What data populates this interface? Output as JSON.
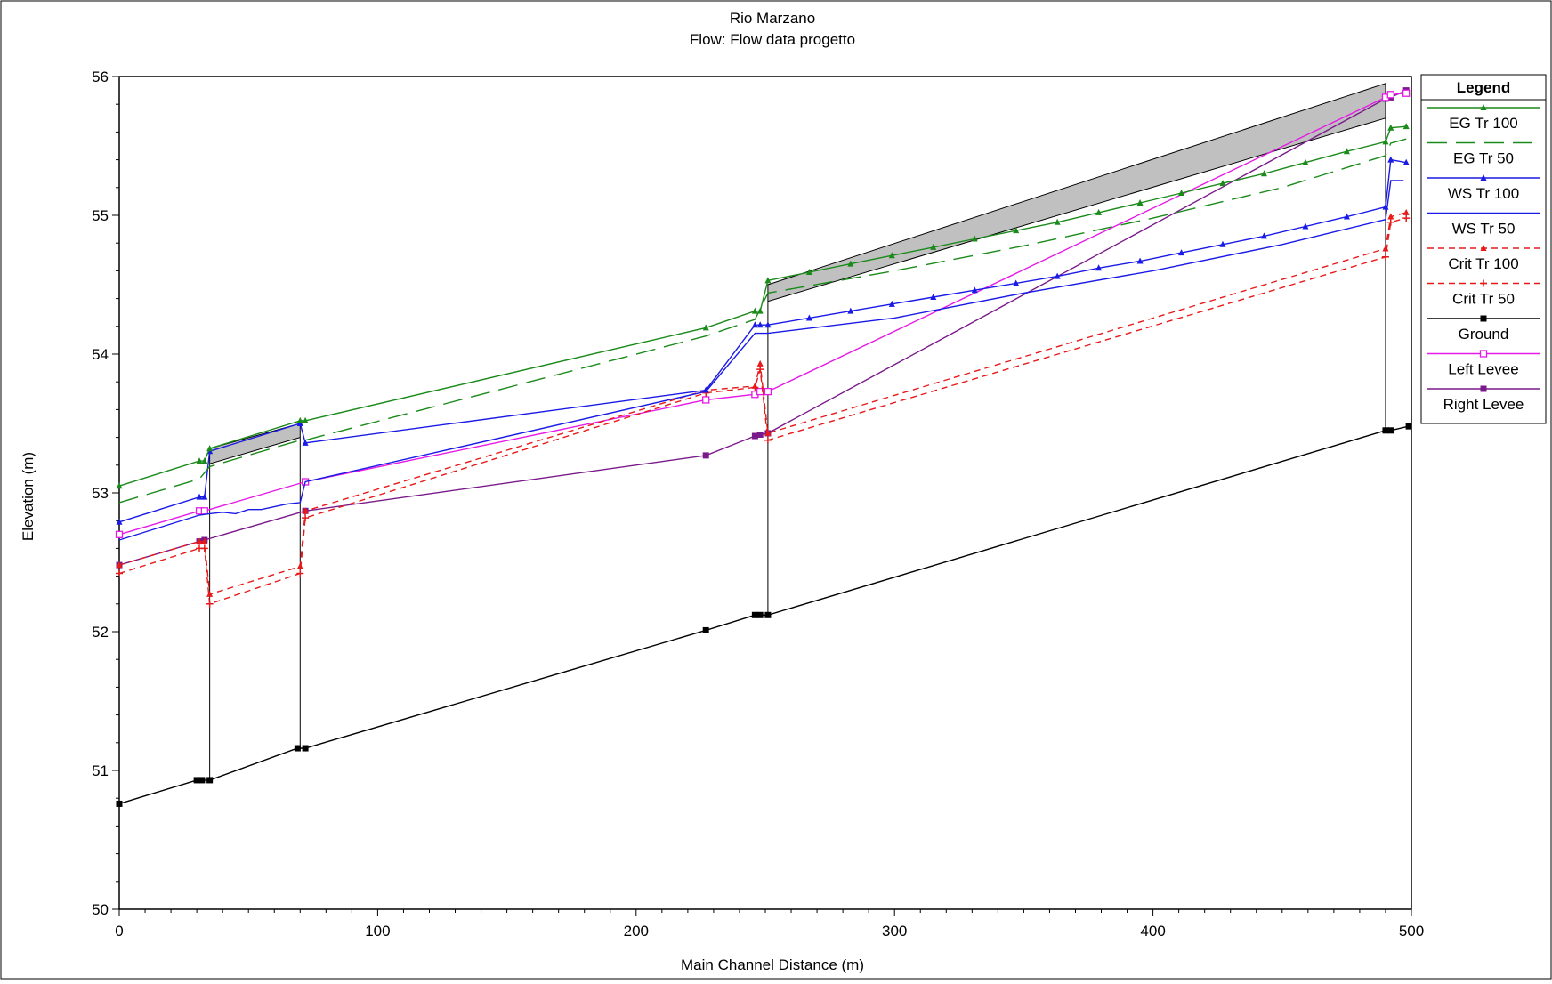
{
  "chart_data": {
    "type": "line",
    "title": "Rio Marzano",
    "subtitle": "Flow: Flow data progetto",
    "xlabel": "Main Channel Distance (m)",
    "ylabel": "Elevation (m)",
    "xlim": [
      0,
      500
    ],
    "ylim": [
      50,
      56
    ],
    "xticks": [
      "0",
      "100",
      "200",
      "300",
      "400",
      "500"
    ],
    "yticks": [
      "50",
      "51",
      "52",
      "53",
      "54",
      "55",
      "56"
    ],
    "legend_title": "Legend",
    "legend_position": "right",
    "series": [
      {
        "name": "EG  Tr 100",
        "color": "#1a8a1a",
        "dash": "none",
        "marker": "tri",
        "points": [
          [
            0,
            53.05
          ],
          [
            31,
            53.23
          ],
          [
            33,
            53.23
          ],
          [
            35,
            53.32
          ],
          [
            70,
            53.52
          ],
          [
            72,
            53.52
          ],
          [
            227,
            54.19
          ],
          [
            246,
            54.31
          ],
          [
            248,
            54.31
          ],
          [
            251,
            54.53
          ],
          [
            267,
            54.59
          ],
          [
            283,
            54.65
          ],
          [
            299,
            54.71
          ],
          [
            315,
            54.77
          ],
          [
            331,
            54.83
          ],
          [
            347,
            54.89
          ],
          [
            363,
            54.95
          ],
          [
            379,
            55.02
          ],
          [
            395,
            55.09
          ],
          [
            411,
            55.16
          ],
          [
            427,
            55.23
          ],
          [
            443,
            55.3
          ],
          [
            459,
            55.38
          ],
          [
            475,
            55.46
          ],
          [
            490,
            55.53
          ],
          [
            492,
            55.63
          ],
          [
            498,
            55.64
          ]
        ]
      },
      {
        "name": "EG  Tr 50",
        "color": "#1a8a1a",
        "dash": "22 10",
        "marker": "none",
        "points": [
          [
            0,
            52.93
          ],
          [
            31,
            53.1
          ],
          [
            35,
            53.19
          ],
          [
            70,
            53.38
          ],
          [
            72,
            53.38
          ],
          [
            227,
            54.13
          ],
          [
            246,
            54.25
          ],
          [
            251,
            54.44
          ],
          [
            300,
            54.6
          ],
          [
            350,
            54.78
          ],
          [
            400,
            54.98
          ],
          [
            450,
            55.2
          ],
          [
            490,
            55.43
          ],
          [
            492,
            55.52
          ],
          [
            498,
            55.55
          ]
        ]
      },
      {
        "name": "WS  Tr 100",
        "color": "#1a1ae6",
        "dash": "none",
        "marker": "tri",
        "points": [
          [
            0,
            52.79
          ],
          [
            31,
            52.97
          ],
          [
            33,
            52.97
          ],
          [
            35,
            53.3
          ],
          [
            70,
            53.5
          ],
          [
            72,
            53.36
          ],
          [
            227,
            53.74
          ],
          [
            246,
            54.21
          ],
          [
            248,
            54.21
          ],
          [
            251,
            54.21
          ],
          [
            267,
            54.26
          ],
          [
            283,
            54.31
          ],
          [
            299,
            54.36
          ],
          [
            315,
            54.41
          ],
          [
            331,
            54.46
          ],
          [
            347,
            54.51
          ],
          [
            363,
            54.56
          ],
          [
            379,
            54.62
          ],
          [
            395,
            54.67
          ],
          [
            411,
            54.73
          ],
          [
            427,
            54.79
          ],
          [
            443,
            54.85
          ],
          [
            459,
            54.92
          ],
          [
            475,
            54.99
          ],
          [
            490,
            55.06
          ],
          [
            492,
            55.4
          ],
          [
            498,
            55.38
          ]
        ]
      },
      {
        "name": "WS  Tr 50",
        "color": "#1a1ae6",
        "dash": "none",
        "marker": "none",
        "points": [
          [
            0,
            52.66
          ],
          [
            31,
            52.84
          ],
          [
            35,
            52.85
          ],
          [
            40,
            52.86
          ],
          [
            45,
            52.85
          ],
          [
            50,
            52.88
          ],
          [
            55,
            52.88
          ],
          [
            60,
            52.9
          ],
          [
            65,
            52.92
          ],
          [
            70,
            52.93
          ],
          [
            72,
            53.08
          ],
          [
            227,
            53.73
          ],
          [
            246,
            54.15
          ],
          [
            251,
            54.15
          ],
          [
            300,
            54.26
          ],
          [
            350,
            54.44
          ],
          [
            400,
            54.6
          ],
          [
            450,
            54.79
          ],
          [
            490,
            54.97
          ],
          [
            492,
            55.25
          ],
          [
            497,
            55.25
          ]
        ]
      },
      {
        "name": "Crit  Tr 100",
        "color": "#e61a1a",
        "dash": "7 5",
        "marker": "tri",
        "points": [
          [
            0,
            52.48
          ],
          [
            31,
            52.65
          ],
          [
            33,
            52.65
          ],
          [
            35,
            52.27
          ],
          [
            70,
            52.47
          ],
          [
            72,
            52.87
          ],
          [
            227,
            53.74
          ],
          [
            246,
            53.77
          ],
          [
            248,
            53.93
          ],
          [
            251,
            53.43
          ],
          [
            490,
            54.76
          ],
          [
            492,
            54.99
          ],
          [
            498,
            55.02
          ]
        ]
      },
      {
        "name": "Crit  Tr 50",
        "color": "#e61a1a",
        "dash": "7 5",
        "marker": "plus",
        "points": [
          [
            0,
            52.42
          ],
          [
            31,
            52.6
          ],
          [
            33,
            52.6
          ],
          [
            35,
            52.2
          ],
          [
            70,
            52.42
          ],
          [
            72,
            52.82
          ],
          [
            227,
            53.72
          ],
          [
            246,
            53.76
          ],
          [
            248,
            53.89
          ],
          [
            251,
            53.38
          ],
          [
            490,
            54.7
          ],
          [
            492,
            54.95
          ],
          [
            498,
            54.98
          ]
        ]
      },
      {
        "name": "Ground",
        "color": "#000000",
        "dash": "none",
        "marker": "sqfill",
        "points": [
          [
            0,
            50.76
          ],
          [
            30,
            50.93
          ],
          [
            32,
            50.93
          ],
          [
            35,
            50.93
          ],
          [
            69,
            51.16
          ],
          [
            72,
            51.16
          ],
          [
            227,
            52.01
          ],
          [
            246,
            52.12
          ],
          [
            248,
            52.12
          ],
          [
            251,
            52.12
          ],
          [
            490,
            53.45
          ],
          [
            492,
            53.45
          ],
          [
            499,
            53.48
          ]
        ]
      },
      {
        "name": "Left Levee",
        "color": "#e61ae6",
        "dash": "none",
        "marker": "sqopen",
        "points": [
          [
            0,
            52.7
          ],
          [
            31,
            52.87
          ],
          [
            33,
            52.87
          ],
          [
            72,
            53.08
          ],
          [
            227,
            53.67
          ],
          [
            246,
            53.71
          ],
          [
            248,
            53.73
          ],
          [
            251,
            53.73
          ],
          [
            490,
            55.85
          ],
          [
            492,
            55.87
          ],
          [
            498,
            55.88
          ]
        ]
      },
      {
        "name": "Right Levee",
        "color": "#7a1a8a",
        "dash": "none",
        "marker": "sqfill",
        "points": [
          [
            0,
            52.48
          ],
          [
            31,
            52.65
          ],
          [
            33,
            52.66
          ],
          [
            72,
            52.87
          ],
          [
            227,
            53.27
          ],
          [
            246,
            53.41
          ],
          [
            248,
            53.42
          ],
          [
            251,
            53.43
          ],
          [
            490,
            55.84
          ],
          [
            492,
            55.85
          ],
          [
            498,
            55.9
          ]
        ]
      }
    ],
    "bridge_decks": [
      {
        "x1": 35,
        "x2": 70,
        "y1_low": 53.21,
        "y1_high": 53.32,
        "y2_low": 53.4,
        "y2_high": 53.5
      },
      {
        "x1": 251,
        "x2": 490,
        "y1_low": 54.38,
        "y1_high": 54.5,
        "y2_low": 55.7,
        "y2_high": 55.95
      }
    ],
    "vertical_lines": [
      {
        "x": 35,
        "y1": 50.93,
        "y2": 53.21
      },
      {
        "x": 70,
        "y1": 51.16,
        "y2": 53.4
      },
      {
        "x": 251,
        "y1": 52.12,
        "y2": 54.38
      },
      {
        "x": 490,
        "y1": 53.45,
        "y2": 55.7
      }
    ]
  }
}
